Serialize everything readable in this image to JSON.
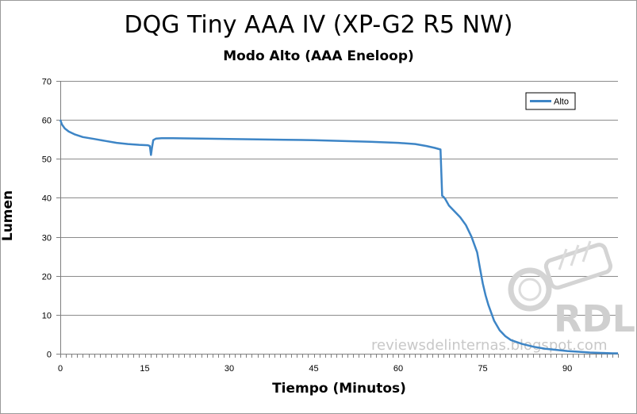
{
  "chart_data": {
    "type": "line",
    "title": "DQG Tiny AAA IV (XP-G2 R5 NW)",
    "subtitle": "Modo Alto (AAA Eneloop)",
    "xlabel": "Tiempo (Minutos)",
    "ylabel": "Lumen",
    "xlim": [
      0,
      99
    ],
    "ylim": [
      0,
      70
    ],
    "xticks": [
      0,
      15,
      30,
      45,
      60,
      75,
      90
    ],
    "yticks": [
      0,
      10,
      20,
      30,
      40,
      50,
      60,
      70
    ],
    "grid": "horizontal",
    "legend_position": "top-right",
    "series_color": "#3d85c6",
    "series": [
      {
        "name": "Alto",
        "x": [
          0,
          0.3,
          0.8,
          1.5,
          2.5,
          4,
          6,
          8,
          10,
          12,
          14,
          15.5,
          15.9,
          16.1,
          16.3,
          16.5,
          17,
          18,
          20,
          25,
          30,
          35,
          40,
          45,
          50,
          55,
          60,
          63,
          65,
          66.5,
          67.5,
          67.8,
          68,
          68.3,
          69,
          70,
          71,
          72,
          73,
          74,
          74.5,
          75,
          75.5,
          76,
          77,
          78,
          79,
          80,
          82,
          84,
          86,
          88,
          90,
          92,
          94,
          96,
          98,
          99
        ],
        "y": [
          60,
          58.8,
          57.8,
          57,
          56.3,
          55.6,
          55.1,
          54.6,
          54.1,
          53.8,
          53.6,
          53.5,
          53.3,
          51,
          53,
          54.8,
          55.2,
          55.3,
          55.3,
          55.2,
          55.1,
          55,
          54.9,
          54.8,
          54.6,
          54.4,
          54.1,
          53.8,
          53.3,
          52.8,
          52.4,
          40.5,
          40.3,
          39.8,
          38,
          36.5,
          35,
          33,
          30,
          26,
          22,
          18,
          15,
          12.5,
          8.5,
          6,
          4.5,
          3.5,
          2.5,
          1.8,
          1.3,
          1,
          0.7,
          0.5,
          0.3,
          0.2,
          0.1,
          0.1
        ]
      }
    ]
  },
  "watermark": {
    "logo_text": "RDL",
    "site_text": "reviewsdelinternas.blogspot.com"
  }
}
